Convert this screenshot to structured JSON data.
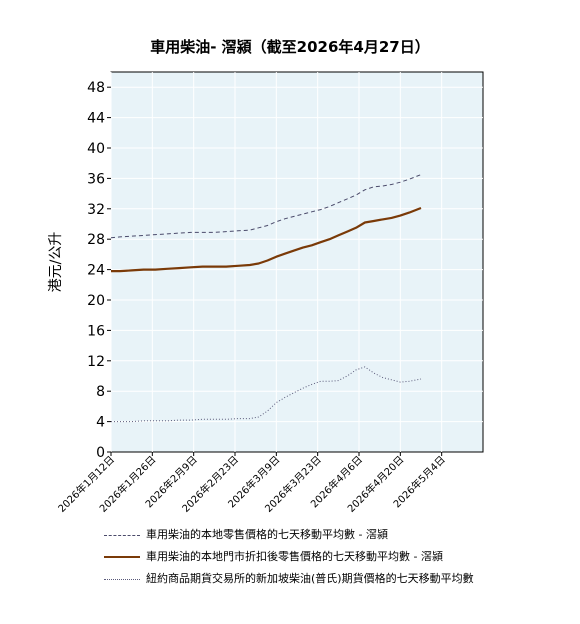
{
  "chart_data": {
    "type": "line",
    "title": "車用柴油- 滘潁（截至2026年4月27日）",
    "ylabel": "港元/公升",
    "ylim": [
      0,
      50
    ],
    "yticks": [
      0,
      4,
      8,
      12,
      16,
      20,
      24,
      28,
      32,
      36,
      40,
      44,
      48
    ],
    "xticks": [
      "2026年1月12日",
      "2026年1月26日",
      "2026年2月9日",
      "2026年2月23日",
      "2026年3月9日",
      "2026年3月23日",
      "2026年4月6日",
      "2026年4月20日",
      "2026年5月4日"
    ],
    "x_start": "2026-01-12",
    "x_end": "2026-05-18",
    "grid": true,
    "legend_position": "bottom",
    "series": [
      {
        "name": "車用柴油的本地零售價格的七天移動平均數 - 滘潁",
        "style": "dashed",
        "color": "#4a4a6a",
        "dates": [
          "2026-01-12",
          "2026-01-15",
          "2026-01-19",
          "2026-01-23",
          "2026-01-27",
          "2026-01-31",
          "2026-02-04",
          "2026-02-08",
          "2026-02-12",
          "2026-02-16",
          "2026-02-20",
          "2026-02-24",
          "2026-02-28",
          "2026-03-03",
          "2026-03-06",
          "2026-03-09",
          "2026-03-12",
          "2026-03-15",
          "2026-03-18",
          "2026-03-21",
          "2026-03-24",
          "2026-03-27",
          "2026-03-30",
          "2026-04-02",
          "2026-04-05",
          "2026-04-08",
          "2026-04-11",
          "2026-04-14",
          "2026-04-17",
          "2026-04-20",
          "2026-04-23",
          "2026-04-27"
        ],
        "values": [
          28.2,
          28.3,
          28.4,
          28.5,
          28.6,
          28.7,
          28.8,
          28.9,
          28.9,
          28.9,
          29.0,
          29.1,
          29.2,
          29.5,
          29.8,
          30.3,
          30.7,
          31.0,
          31.3,
          31.6,
          31.9,
          32.3,
          32.8,
          33.3,
          33.8,
          34.5,
          34.9,
          35.0,
          35.2,
          35.5,
          35.9,
          36.5
        ]
      },
      {
        "name": "車用柴油的本地門市折扣後零售價格的七天移動平均數 - 滘潁",
        "style": "solid",
        "color": "#7a3a08",
        "dates": [
          "2026-01-12",
          "2026-01-15",
          "2026-01-19",
          "2026-01-23",
          "2026-01-27",
          "2026-01-31",
          "2026-02-04",
          "2026-02-08",
          "2026-02-12",
          "2026-02-16",
          "2026-02-20",
          "2026-02-24",
          "2026-02-28",
          "2026-03-03",
          "2026-03-06",
          "2026-03-09",
          "2026-03-12",
          "2026-03-15",
          "2026-03-18",
          "2026-03-21",
          "2026-03-24",
          "2026-03-27",
          "2026-03-30",
          "2026-04-02",
          "2026-04-05",
          "2026-04-08",
          "2026-04-11",
          "2026-04-14",
          "2026-04-17",
          "2026-04-20",
          "2026-04-23",
          "2026-04-27"
        ],
        "values": [
          23.8,
          23.8,
          23.9,
          24.0,
          24.0,
          24.1,
          24.2,
          24.3,
          24.4,
          24.4,
          24.4,
          24.5,
          24.6,
          24.8,
          25.2,
          25.7,
          26.1,
          26.5,
          26.9,
          27.2,
          27.6,
          28.0,
          28.5,
          29.0,
          29.5,
          30.2,
          30.4,
          30.6,
          30.8,
          31.1,
          31.5,
          32.1
        ]
      },
      {
        "name": "紐約商品期貨交易所的新加坡柴油(普氏)期貨價格的七天移動平均數",
        "style": "dotted",
        "color": "#5a5a7a",
        "dates": [
          "2026-01-12",
          "2026-01-15",
          "2026-01-19",
          "2026-01-23",
          "2026-01-27",
          "2026-01-31",
          "2026-02-04",
          "2026-02-08",
          "2026-02-12",
          "2026-02-16",
          "2026-02-20",
          "2026-02-24",
          "2026-02-28",
          "2026-03-03",
          "2026-03-06",
          "2026-03-09",
          "2026-03-12",
          "2026-03-15",
          "2026-03-18",
          "2026-03-21",
          "2026-03-24",
          "2026-03-27",
          "2026-03-30",
          "2026-04-02",
          "2026-04-05",
          "2026-04-08",
          "2026-04-11",
          "2026-04-14",
          "2026-04-17",
          "2026-04-20",
          "2026-04-23",
          "2026-04-27"
        ],
        "values": [
          4.0,
          4.0,
          4.0,
          4.1,
          4.1,
          4.1,
          4.2,
          4.2,
          4.3,
          4.3,
          4.3,
          4.4,
          4.4,
          4.6,
          5.4,
          6.5,
          7.2,
          7.8,
          8.4,
          8.9,
          9.3,
          9.3,
          9.4,
          10.0,
          10.8,
          11.2,
          10.4,
          9.8,
          9.5,
          9.2,
          9.3,
          9.6
        ]
      }
    ]
  }
}
